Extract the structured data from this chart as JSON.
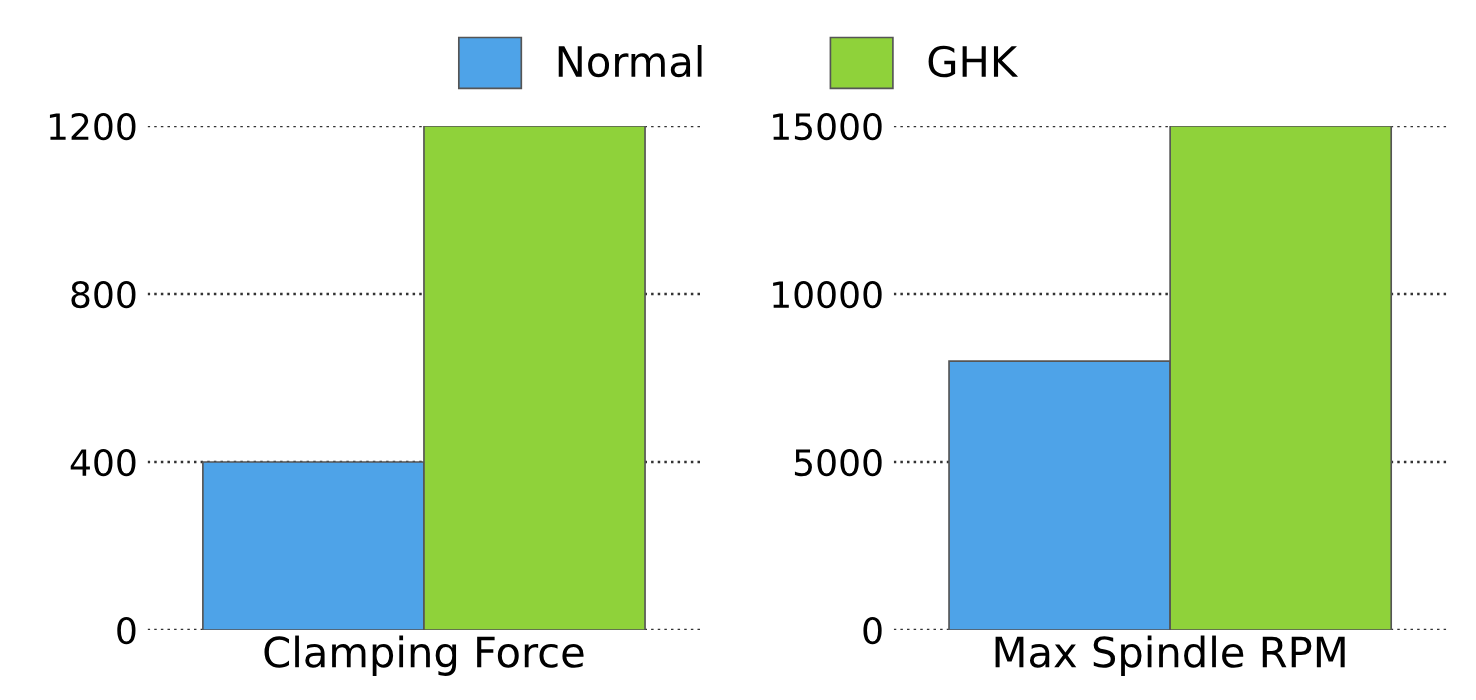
{
  "chart_data": [
    {
      "type": "bar",
      "categories": [
        "Clamping Force"
      ],
      "series": [
        {
          "name": "Normal",
          "color": "#4ea3e8",
          "values": [
            400
          ]
        },
        {
          "name": "GHK",
          "color": "#8fd23a",
          "values": [
            1200
          ]
        }
      ],
      "ylim": [
        0,
        1200
      ],
      "yticks": [
        0,
        400,
        800,
        1200
      ],
      "grid": "y",
      "legend": "top"
    },
    {
      "type": "bar",
      "categories": [
        "Max Spindle RPM"
      ],
      "series": [
        {
          "color": "#4ea3e8",
          "values": [
            8000
          ]
        },
        {
          "color": "#8fd23a",
          "values": [
            15000
          ]
        }
      ],
      "ylim": [
        0,
        15000
      ],
      "yticks": [
        0,
        5000,
        10000,
        15000
      ],
      "grid": "y"
    }
  ]
}
